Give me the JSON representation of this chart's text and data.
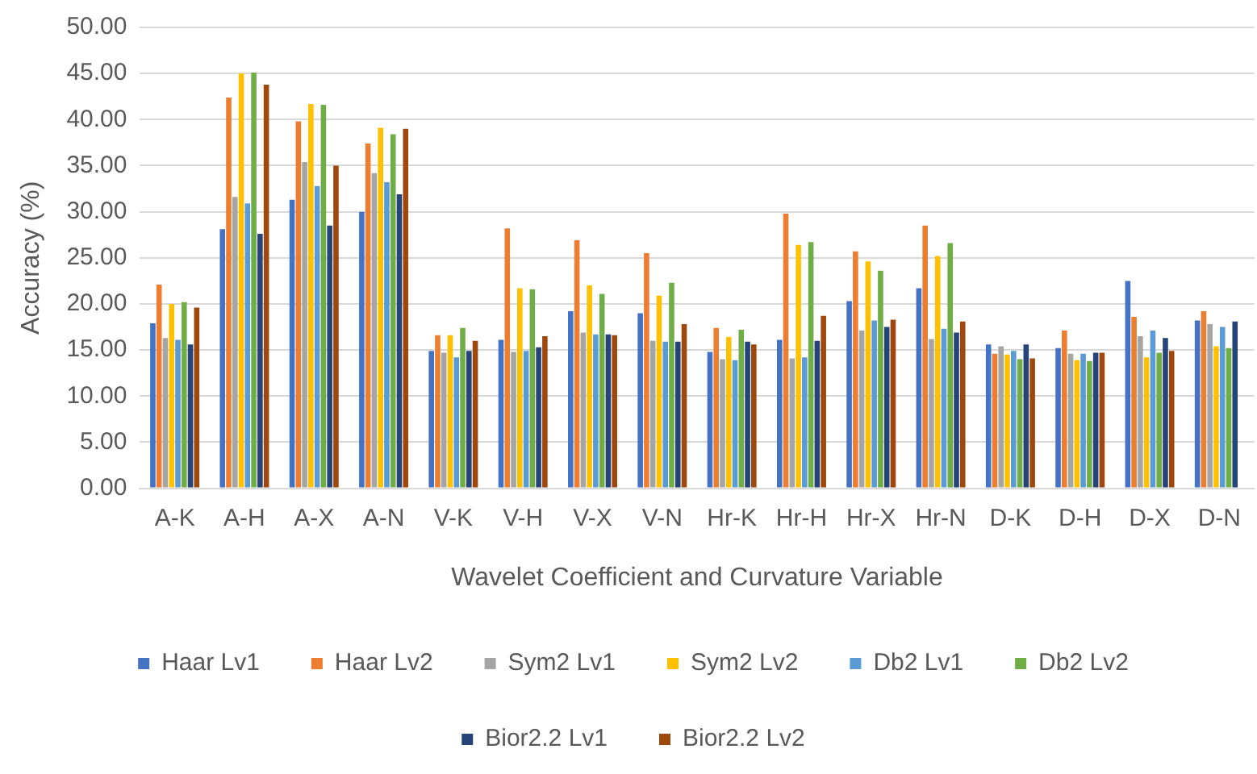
{
  "chart_data": {
    "type": "bar",
    "xlabel": "Wavelet Coefficient and Curvature Variable",
    "ylabel": "Accuracy (%)",
    "categories": [
      "A-K",
      "A-H",
      "A-X",
      "A-N",
      "V-K",
      "V-H",
      "V-X",
      "V-N",
      "Hr-K",
      "Hr-H",
      "Hr-X",
      "Hr-N",
      "D-K",
      "D-H",
      "D-X",
      "D-N"
    ],
    "series": [
      {
        "name": "Haar Lv1",
        "color": "#4472c4",
        "values": [
          17.9,
          28.1,
          31.3,
          30.0,
          14.9,
          16.1,
          19.2,
          19.0,
          14.8,
          16.1,
          20.3,
          21.7,
          15.6,
          15.2,
          22.5,
          18.2
        ]
      },
      {
        "name": "Haar Lv2",
        "color": "#ed7d31",
        "values": [
          22.1,
          42.4,
          39.8,
          37.4,
          16.6,
          28.2,
          26.9,
          25.5,
          17.4,
          29.8,
          25.7,
          28.5,
          14.6,
          17.1,
          18.6,
          19.2
        ]
      },
      {
        "name": "Sym2 Lv1",
        "color": "#a5a5a5",
        "values": [
          16.3,
          31.6,
          35.4,
          34.2,
          14.7,
          14.8,
          16.9,
          16.0,
          14.0,
          14.1,
          17.1,
          16.2,
          15.4,
          14.6,
          16.5,
          17.8
        ]
      },
      {
        "name": "Sym2 Lv2",
        "color": "#ffc000",
        "values": [
          20.0,
          45.0,
          41.7,
          39.1,
          16.6,
          21.7,
          22.0,
          20.9,
          16.4,
          26.4,
          24.6,
          25.2,
          14.5,
          13.9,
          14.2,
          15.4
        ]
      },
      {
        "name": "Db2 Lv1",
        "color": "#5b9bd5",
        "values": [
          16.1,
          30.9,
          32.8,
          33.2,
          14.2,
          14.9,
          16.7,
          15.9,
          13.9,
          14.2,
          18.2,
          17.3,
          14.9,
          14.6,
          17.1,
          17.5
        ]
      },
      {
        "name": "Db2 Lv2",
        "color": "#70ad47",
        "values": [
          20.2,
          45.1,
          41.6,
          38.4,
          17.4,
          21.6,
          21.1,
          22.3,
          17.2,
          26.7,
          23.6,
          26.6,
          14.0,
          13.8,
          14.7,
          15.2
        ]
      },
      {
        "name": "Bior2.2 Lv1",
        "color": "#264478",
        "values": [
          15.6,
          27.6,
          28.5,
          31.9,
          14.9,
          15.3,
          16.7,
          15.9,
          15.9,
          16.0,
          17.5,
          16.9,
          15.6,
          14.7,
          16.3,
          18.1
        ]
      },
      {
        "name": "Bior2.2 Lv2",
        "color": "#9e480e",
        "values": [
          19.6,
          43.8,
          35.0,
          39.0,
          16.0,
          16.5,
          16.6,
          17.8,
          15.6,
          18.7,
          18.3,
          18.1,
          14.1,
          14.7,
          14.9,
          null
        ]
      }
    ],
    "ylim": [
      0,
      50
    ],
    "yticks": [
      {
        "value": 0,
        "label": "0.00"
      },
      {
        "value": 5,
        "label": "5.00"
      },
      {
        "value": 10,
        "label": "10.00"
      },
      {
        "value": 15,
        "label": "15.00"
      },
      {
        "value": 20,
        "label": "20.00"
      },
      {
        "value": 25,
        "label": "25.00"
      },
      {
        "value": 30,
        "label": "30.00"
      },
      {
        "value": 35,
        "label": "35.00"
      },
      {
        "value": 40,
        "label": "40.00"
      },
      {
        "value": 45,
        "label": "45.00"
      },
      {
        "value": 50,
        "label": "50.00"
      }
    ],
    "grid": "y",
    "legend": "bottom"
  }
}
